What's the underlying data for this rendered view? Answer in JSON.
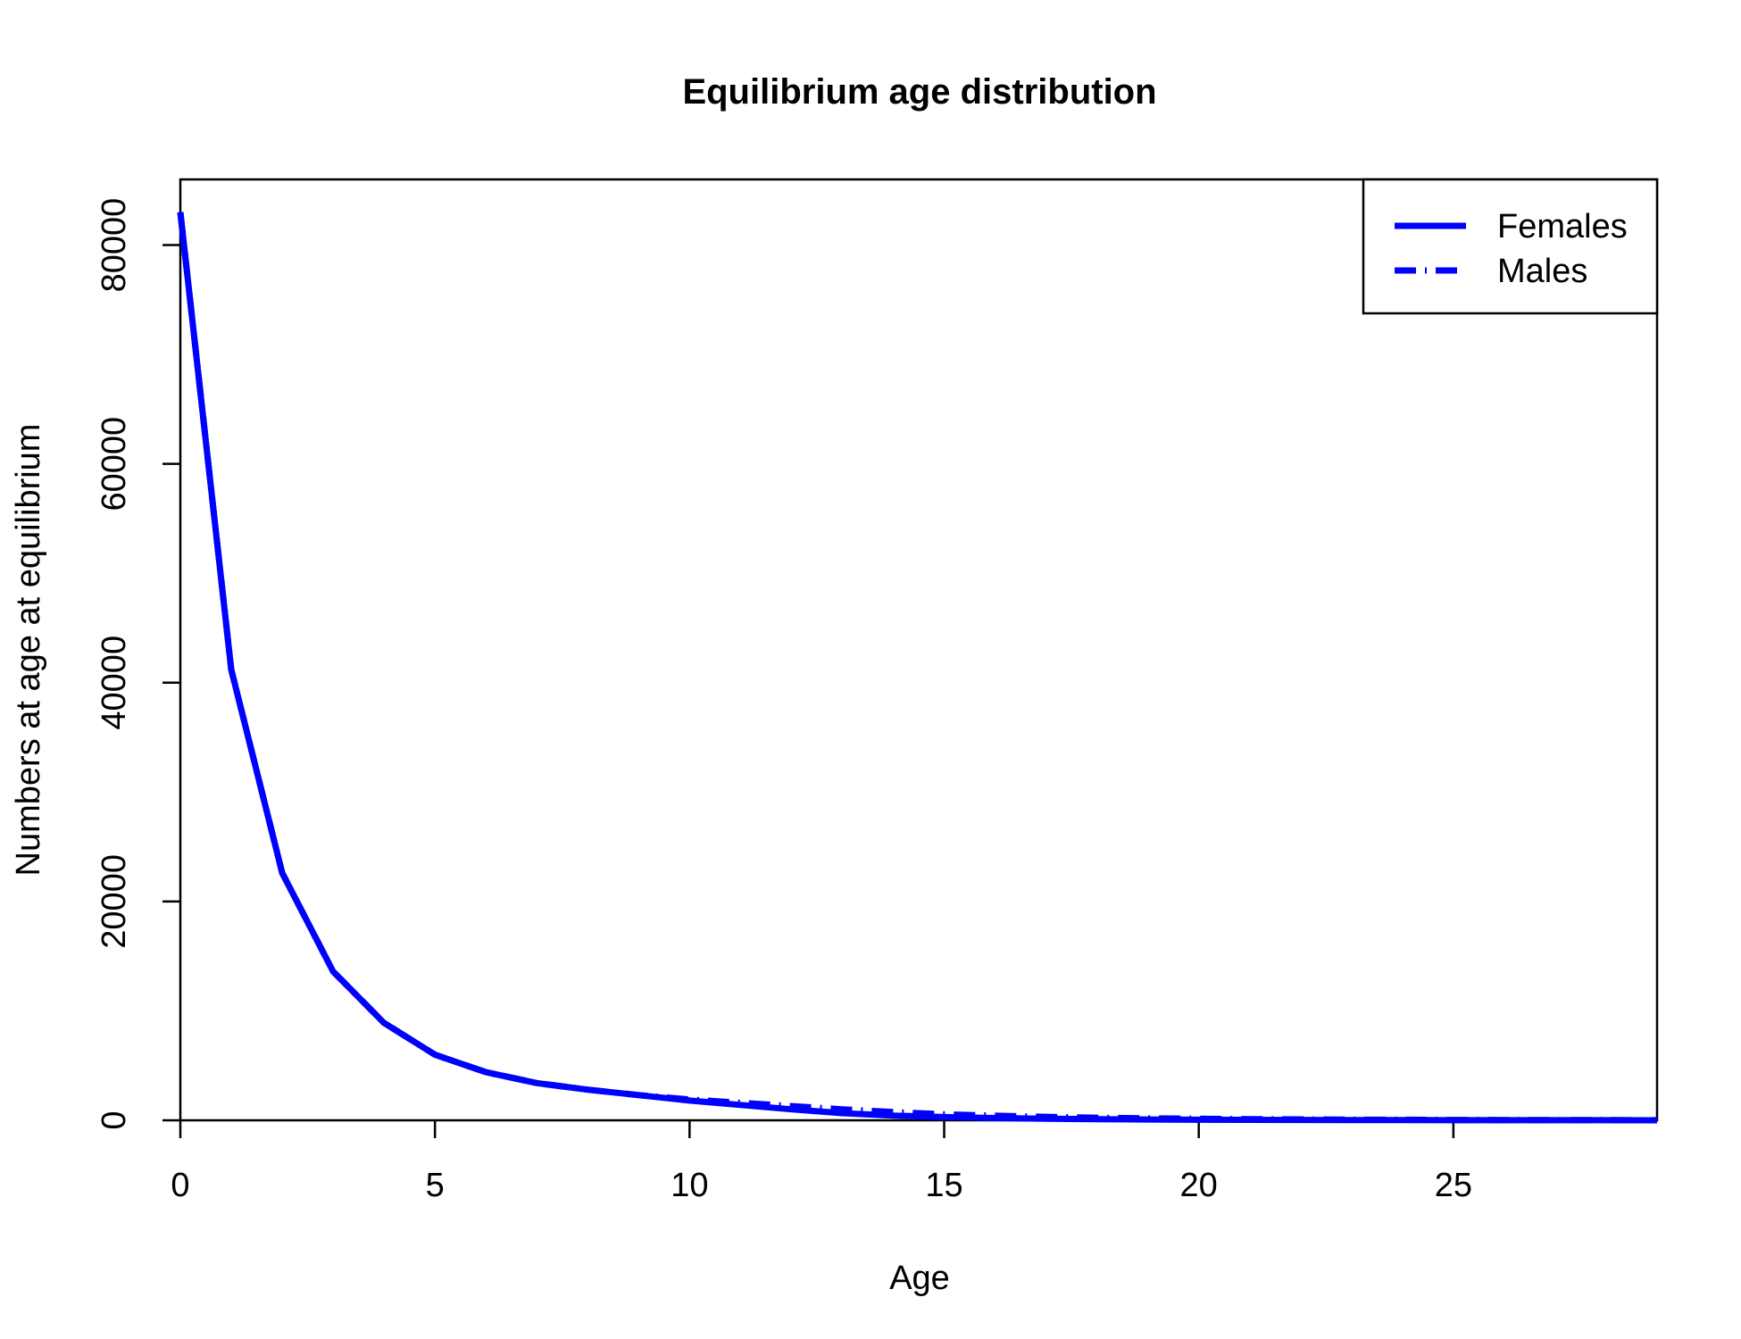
{
  "chart_data": {
    "type": "line",
    "title": "Equilibrium age distribution",
    "xlabel": "Age",
    "ylabel": "Numbers at age at equilibrium",
    "xlim": [
      0,
      29
    ],
    "ylim": [
      0,
      86000
    ],
    "xticks": [
      0,
      5,
      10,
      15,
      20,
      25
    ],
    "yticks": [
      0,
      20000,
      40000,
      60000,
      80000
    ],
    "grid": false,
    "legend": {
      "position": "top-right",
      "entries": [
        {
          "name": "Females",
          "style": "solid"
        },
        {
          "name": "Males",
          "style": "dashdot"
        }
      ]
    },
    "x": [
      0,
      1,
      2,
      3,
      4,
      5,
      6,
      7,
      8,
      9,
      10,
      11,
      12,
      13,
      14,
      15,
      16,
      17,
      18,
      19,
      20,
      21,
      22,
      23,
      24,
      25,
      26,
      27,
      28,
      29
    ],
    "series": [
      {
        "name": "Females",
        "color": "#0000ff",
        "style": "solid",
        "values": [
          83000,
          41200,
          22600,
          13600,
          8900,
          6000,
          4400,
          3400,
          2800,
          2300,
          1800,
          1400,
          1000,
          650,
          430,
          290,
          200,
          140,
          100,
          70,
          50,
          40,
          30,
          20,
          15,
          10,
          8,
          6,
          5,
          4
        ]
      },
      {
        "name": "Males",
        "color": "#0000ff",
        "style": "dashdot",
        "values": [
          83000,
          41200,
          22600,
          13600,
          8900,
          6000,
          4400,
          3400,
          2800,
          2300,
          1900,
          1600,
          1300,
          1000,
          750,
          550,
          420,
          320,
          240,
          180,
          140,
          110,
          80,
          60,
          45,
          35,
          25,
          20,
          15,
          10
        ]
      }
    ]
  }
}
